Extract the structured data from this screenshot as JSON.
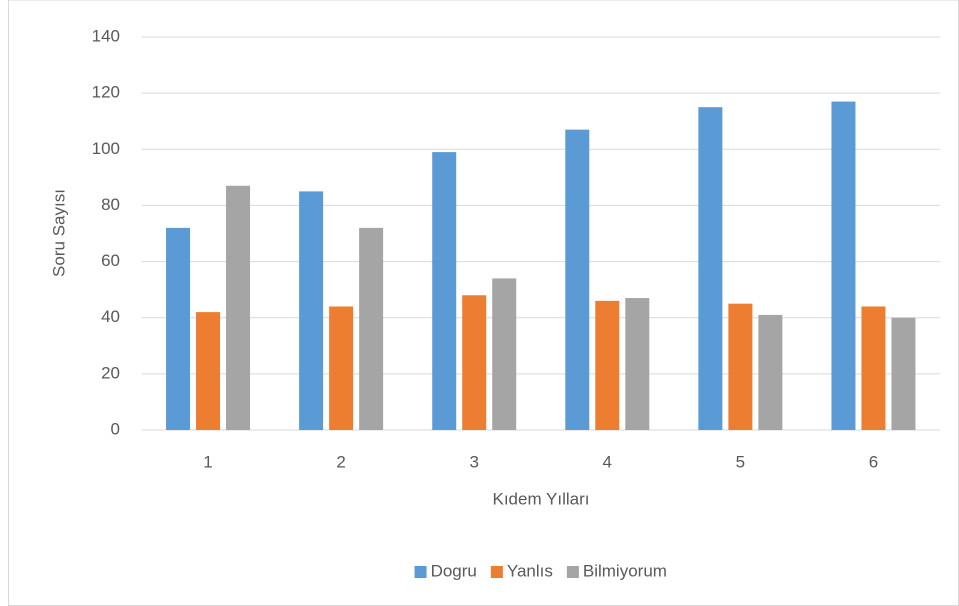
{
  "chart_data": {
    "type": "bar",
    "categories": [
      "1",
      "2",
      "3",
      "4",
      "5",
      "6"
    ],
    "series": [
      {
        "name": "Dogru",
        "color": "#5b9bd5",
        "values": [
          72,
          85,
          99,
          107,
          115,
          117
        ]
      },
      {
        "name": "Yanlıs",
        "color": "#ed7d31",
        "values": [
          42,
          44,
          48,
          46,
          45,
          44
        ]
      },
      {
        "name": "Bilmiyorum",
        "color": "#a5a5a5",
        "values": [
          87,
          72,
          54,
          47,
          41,
          40
        ]
      }
    ],
    "xlabel": "Kıdem Yılları",
    "ylabel": "Soru Sayısı",
    "ylim": [
      0,
      140
    ],
    "yticks": [
      0,
      20,
      40,
      60,
      80,
      100,
      120,
      140
    ],
    "grid": true,
    "legend": "bottom"
  }
}
